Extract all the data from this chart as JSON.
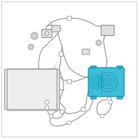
{
  "bg_color": "#ffffff",
  "border_color": "#d0d0d0",
  "line_color": "#999999",
  "line_color2": "#aaaaaa",
  "compressor_fill": "#2cb8d4",
  "compressor_edge": "#1a90a8",
  "part_color": "#cccccc",
  "part_edge": "#888888",
  "grid_color": "#c0c0c0",
  "fig_width": 2.0,
  "fig_height": 2.0,
  "dpi": 100
}
